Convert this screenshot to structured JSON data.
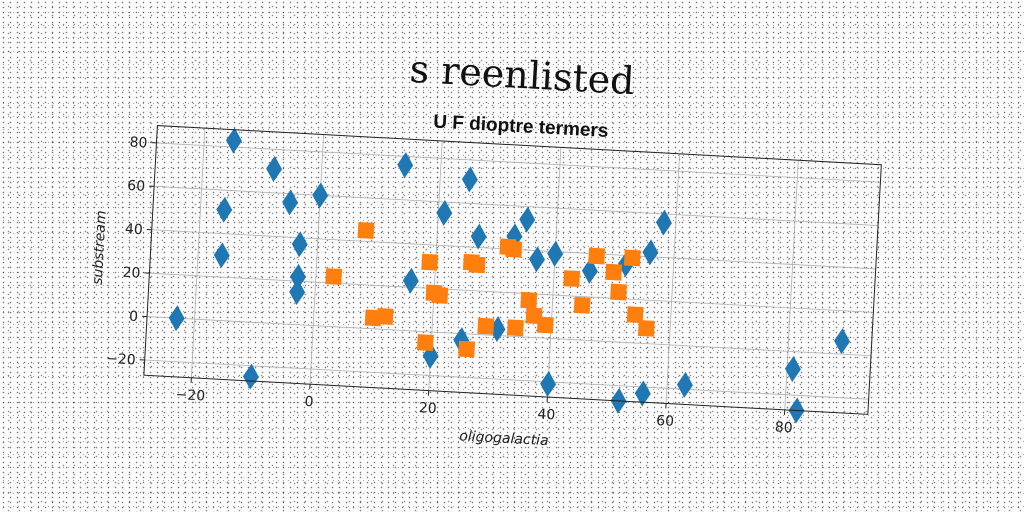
{
  "page": {
    "title": "s reenlisted"
  },
  "chart_data": {
    "type": "scatter",
    "title": "U F dioptre termers",
    "xlabel": "oligogalactia",
    "ylabel": "substream",
    "xlim": [
      -28,
      94
    ],
    "ylim": [
      -27,
      88
    ],
    "xticks": [
      -20,
      0,
      20,
      40,
      60,
      80
    ],
    "yticks": [
      -20,
      0,
      20,
      40,
      60,
      80
    ],
    "grid": true,
    "legend": "none",
    "series": [
      {
        "marker": "diamond",
        "color": "#1f77b4",
        "points": [
          {
            "x": -23,
            "y": 0
          },
          {
            "x": -15,
            "y": 83
          },
          {
            "x": -16,
            "y": 30
          },
          {
            "x": -16,
            "y": 51
          },
          {
            "x": -10,
            "y": -25
          },
          {
            "x": -8,
            "y": 71
          },
          {
            "x": -5,
            "y": 56
          },
          {
            "x": -3,
            "y": 22
          },
          {
            "x": -3,
            "y": 37
          },
          {
            "x": -3,
            "y": 15
          },
          {
            "x": 0,
            "y": 60
          },
          {
            "x": 14,
            "y": 76
          },
          {
            "x": 16,
            "y": 23
          },
          {
            "x": 20,
            "y": -11
          },
          {
            "x": 21,
            "y": 55
          },
          {
            "x": 25,
            "y": -3
          },
          {
            "x": 25,
            "y": 71
          },
          {
            "x": 27,
            "y": 45
          },
          {
            "x": 31,
            "y": 3
          },
          {
            "x": 33,
            "y": 46
          },
          {
            "x": 35,
            "y": 54
          },
          {
            "x": 37,
            "y": 36
          },
          {
            "x": 40,
            "y": 39
          },
          {
            "x": 40,
            "y": -21
          },
          {
            "x": 46,
            "y": 32
          },
          {
            "x": 52,
            "y": 36
          },
          {
            "x": 52,
            "y": -27
          },
          {
            "x": 56,
            "y": 42
          },
          {
            "x": 56,
            "y": -23
          },
          {
            "x": 58,
            "y": 56
          },
          {
            "x": 63,
            "y": -18
          },
          {
            "x": 81,
            "y": -8
          },
          {
            "x": 82,
            "y": -27
          },
          {
            "x": 89,
            "y": 6
          }
        ]
      },
      {
        "marker": "square",
        "color": "#ff7f0e",
        "points": [
          {
            "x": 3,
            "y": 23
          },
          {
            "x": 8,
            "y": 45
          },
          {
            "x": 10,
            "y": 5
          },
          {
            "x": 12,
            "y": 6
          },
          {
            "x": 19,
            "y": 32
          },
          {
            "x": 19,
            "y": -5
          },
          {
            "x": 20,
            "y": 18
          },
          {
            "x": 21,
            "y": 17
          },
          {
            "x": 26,
            "y": 33
          },
          {
            "x": 26,
            "y": -7
          },
          {
            "x": 27,
            "y": 32
          },
          {
            "x": 29,
            "y": 4
          },
          {
            "x": 32,
            "y": 41
          },
          {
            "x": 33,
            "y": 40
          },
          {
            "x": 34,
            "y": 4
          },
          {
            "x": 36,
            "y": 17
          },
          {
            "x": 37,
            "y": 10
          },
          {
            "x": 39,
            "y": 6
          },
          {
            "x": 43,
            "y": 28
          },
          {
            "x": 45,
            "y": 16
          },
          {
            "x": 47,
            "y": 39
          },
          {
            "x": 50,
            "y": 32
          },
          {
            "x": 51,
            "y": 23
          },
          {
            "x": 53,
            "y": 39
          },
          {
            "x": 54,
            "y": 13
          },
          {
            "x": 56,
            "y": 7
          }
        ]
      }
    ]
  }
}
